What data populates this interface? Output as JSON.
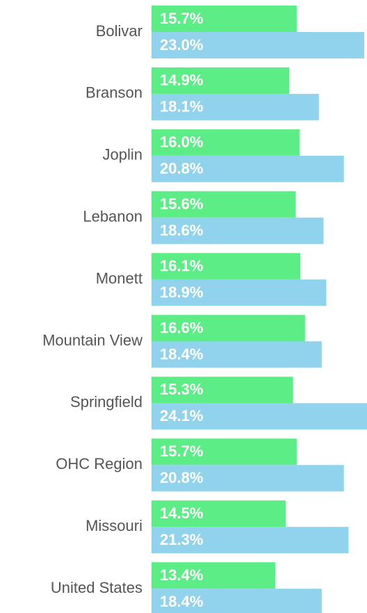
{
  "chart_data": {
    "type": "bar",
    "orientation": "horizontal",
    "categories": [
      "Bolivar",
      "Branson",
      "Joplin",
      "Lebanon",
      "Monett",
      "Mountain View",
      "Springfield",
      "OHC Region",
      "Missouri",
      "United States"
    ],
    "series": [
      {
        "color": "#5ced86",
        "values": [
          15.7,
          14.9,
          16.0,
          15.6,
          16.1,
          16.6,
          15.3,
          15.7,
          14.5,
          13.4
        ],
        "value_labels": [
          "15.7%",
          "14.9%",
          "16.0%",
          "15.6%",
          "16.1%",
          "16.6%",
          "15.3%",
          "15.7%",
          "14.5%",
          "13.4%"
        ]
      },
      {
        "color": "#91d3ec",
        "values": [
          23.0,
          18.1,
          20.8,
          18.6,
          18.9,
          18.4,
          24.1,
          20.8,
          21.3,
          18.4
        ],
        "value_labels": [
          "23.0%",
          "18.1%",
          "20.8%",
          "18.6%",
          "18.9%",
          "18.4%",
          "24.1%",
          "20.8%",
          "21.3%",
          "18.4%"
        ]
      }
    ],
    "xlim": [
      0,
      23.3
    ]
  }
}
